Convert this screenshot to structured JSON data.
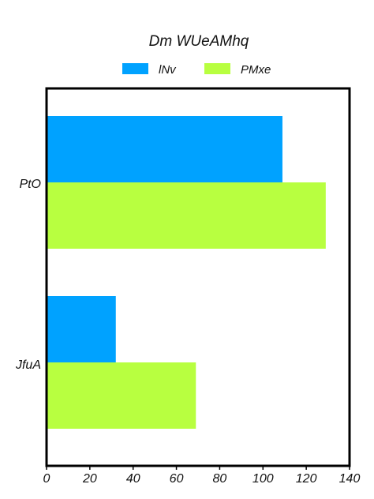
{
  "chart_data": {
    "type": "bar",
    "orientation": "horizontal",
    "title": "Dm WUeAMhq",
    "categories": [
      "PtO",
      "JfuA"
    ],
    "series": [
      {
        "name": "lNv",
        "values": [
          109,
          32
        ],
        "color": "#00a2ff"
      },
      {
        "name": "PMxe",
        "values": [
          129,
          69
        ],
        "color": "#b8ff40"
      }
    ],
    "xlim": [
      0,
      140
    ],
    "xticks": [
      "0",
      "20",
      "40",
      "60",
      "80",
      "100",
      "120",
      "140"
    ],
    "xlabel": "",
    "ylabel": "",
    "grid": false,
    "legend_position": "top"
  }
}
